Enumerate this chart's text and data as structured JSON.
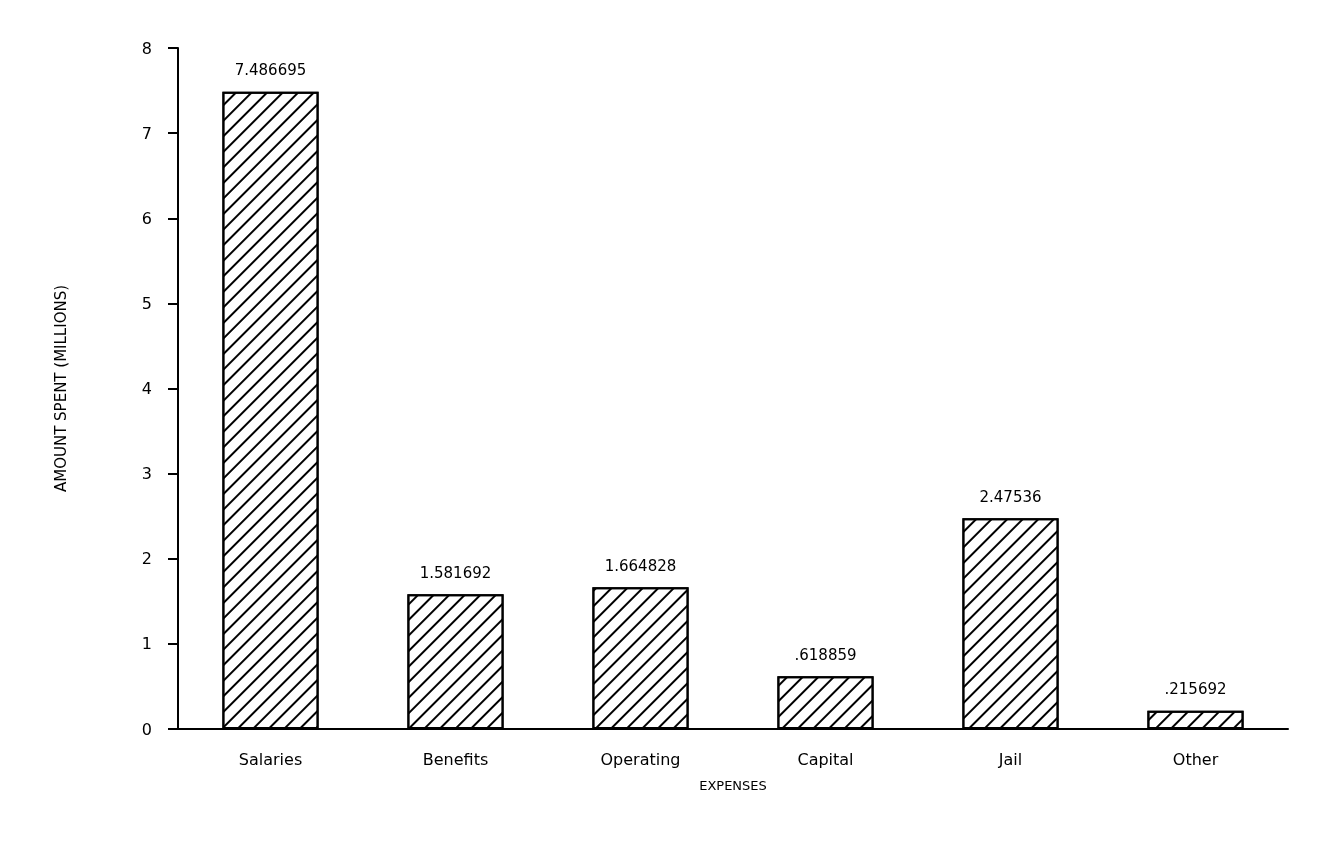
{
  "chart_data": {
    "type": "bar",
    "xlabel": "EXPENSES",
    "ylabel": "AMOUNT SPENT (MILLIONS)",
    "categories": [
      "Salaries",
      "Benefits",
      "Operating",
      "Capital",
      "Jail",
      "Other"
    ],
    "values": [
      7.486695,
      1.581692,
      1.664828,
      0.618859,
      2.47536,
      0.215692
    ],
    "value_labels": [
      "7.486695",
      "1.581692",
      "1.664828",
      ".618859",
      "2.47536",
      ".215692"
    ],
    "color": "#ffffff",
    "ylim": [
      0,
      8
    ],
    "yticks": [
      0,
      1,
      2,
      3,
      4,
      5,
      6,
      7,
      8
    ],
    "grid": false
  }
}
